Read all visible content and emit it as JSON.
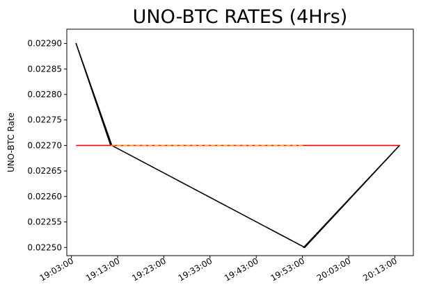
{
  "chart_data": {
    "type": "line",
    "title": "UNO-BTC RATES (4Hrs)",
    "xlabel": "",
    "ylabel": "UNO-BTC Rate",
    "x_ticks": [
      "19:03:00",
      "19:13:00",
      "19:23:00",
      "19:33:00",
      "19:43:00",
      "19:53:00",
      "20:03:00",
      "20:13:00"
    ],
    "y_ticks": [
      "0.02250",
      "0.02255",
      "0.02260",
      "0.02265",
      "0.02270",
      "0.02275",
      "0.02280",
      "0.02285",
      "0.02290"
    ],
    "xlim": [
      "19:02:00",
      "20:17:00"
    ],
    "ylim": [
      0.022484,
      0.022928
    ],
    "grid": false,
    "series": [
      {
        "color": "#000000",
        "style": "solid",
        "points": [
          {
            "x": "19:04:00",
            "y": 0.0229
          },
          {
            "x": "19:11:30",
            "y": 0.0227
          },
          {
            "x": "19:04:00",
            "y": 0.0229
          },
          {
            "x": "19:11:45",
            "y": 0.0227
          },
          {
            "x": "19:53:30",
            "y": 0.0225
          },
          {
            "x": "20:14:00",
            "y": 0.0227
          },
          {
            "x": "19:53:15",
            "y": 0.0225
          },
          {
            "x": "20:14:00",
            "y": 0.0227
          }
        ]
      },
      {
        "color": "#ff0000",
        "style": "solid",
        "points": [
          {
            "x": "19:04:00",
            "y": 0.0227
          },
          {
            "x": "20:14:00",
            "y": 0.0227
          }
        ]
      },
      {
        "color": "#ffa500",
        "style": "dashed",
        "points": [
          {
            "x": "19:11:30",
            "y": 0.0227
          },
          {
            "x": "19:53:30",
            "y": 0.0227
          }
        ]
      }
    ]
  }
}
